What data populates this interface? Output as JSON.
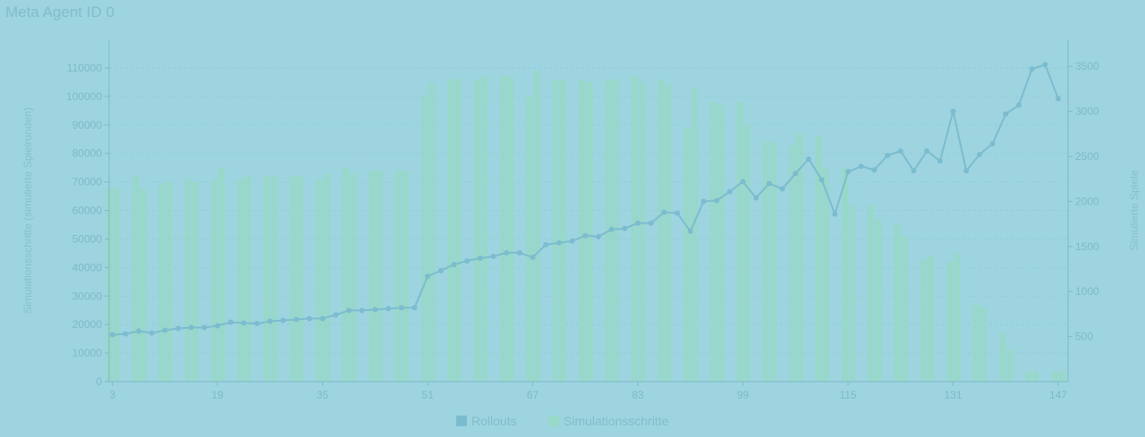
{
  "chart_data": {
    "type": "bar",
    "title": "Meta Agent ID 0",
    "x": [
      3,
      5,
      7,
      9,
      11,
      13,
      15,
      17,
      19,
      21,
      23,
      25,
      27,
      29,
      31,
      33,
      35,
      37,
      39,
      41,
      43,
      45,
      47,
      49,
      51,
      53,
      55,
      57,
      59,
      61,
      63,
      65,
      67,
      69,
      71,
      73,
      75,
      77,
      79,
      81,
      83,
      85,
      87,
      89,
      91,
      93,
      95,
      97,
      99,
      101,
      103,
      105,
      107,
      109,
      111,
      113,
      115,
      117,
      119,
      121,
      123,
      125,
      127,
      129,
      131,
      133,
      135,
      137,
      139,
      141,
      143,
      145,
      147
    ],
    "xticks": [
      3,
      19,
      35,
      51,
      67,
      83,
      99,
      115,
      131,
      147
    ],
    "ylabel_left": "Simulationsschritte (simulierte Spielrunden)",
    "ylabel_right": "Simulierte Spiele",
    "ylim_left": [
      0,
      120000
    ],
    "ylim_right": [
      0,
      3800
    ],
    "yticks_left": [
      0,
      10000,
      20000,
      30000,
      40000,
      50000,
      60000,
      70000,
      80000,
      90000,
      100000,
      110000
    ],
    "yticks_right": [
      500,
      1000,
      1500,
      2000,
      2500,
      3000,
      3500
    ],
    "legend": [
      "Rollouts",
      "Simulationsschritte"
    ],
    "legend_position": "bottom",
    "colors": {
      "background": "#9dd4e0",
      "bars": "#98d8c6",
      "line": "#7cbccf",
      "axis": "#80b9c8"
    },
    "series": [
      {
        "name": "Simulationsschritte",
        "type": "bar",
        "axis": "left",
        "values": [
          67500,
          72000,
          69000,
          71000,
          71000,
          74000,
          71000,
          72000,
          72000,
          72000,
          71000,
          75000,
          74000,
          74000,
          74000,
          74000,
          100000,
          106000,
          106000,
          106000,
          107000,
          107000,
          100000,
          107000,
          106000,
          106000,
          106000,
          106000,
          105000,
          106000,
          107000,
          106000,
          106000,
          106000,
          100000,
          101000,
          99000,
          98000,
          98000,
          96000,
          95000,
          94000,
          91000,
          89000,
          84000,
          84000,
          84000,
          84000,
          83000,
          85000,
          86000,
          86000,
          80000,
          75000,
          75000,
          62000,
          55000,
          52000,
          43000,
          42000,
          43000,
          43000,
          42000,
          42000,
          27000,
          27000,
          17000,
          11000,
          3500,
          3500,
          3500,
          3500,
          3500
        ],
        "pairs": [
          [
            67500,
            68000
          ],
          [
            72000,
            67500
          ],
          [
            69000,
            70000
          ],
          [
            71000,
            70000
          ],
          [
            71000,
            75000
          ],
          [
            71000,
            72000
          ],
          [
            72000,
            72000
          ],
          [
            72000,
            72000
          ],
          [
            71000,
            73000
          ],
          [
            75000,
            73000
          ],
          [
            74000,
            74000
          ],
          [
            74000,
            74000
          ],
          [
            100000,
            105000
          ],
          [
            106000,
            106000
          ],
          [
            106000,
            107000
          ],
          [
            107000,
            107000
          ],
          [
            100000,
            109000
          ],
          [
            106000,
            106000
          ],
          [
            106000,
            105000
          ],
          [
            106000,
            106000
          ],
          [
            107000,
            105000
          ],
          [
            106000,
            104000
          ],
          [
            89000,
            103000
          ],
          [
            98000,
            97000
          ],
          [
            98000,
            90000
          ],
          [
            84000,
            84000
          ],
          [
            83000,
            87000
          ],
          [
            86000,
            75000
          ],
          [
            75000,
            62000
          ],
          [
            62000,
            57000
          ],
          [
            55000,
            51000
          ],
          [
            43000,
            44000
          ],
          [
            42000,
            45000
          ],
          [
            27000,
            26000
          ],
          [
            17000,
            11000
          ],
          [
            3500,
            3500
          ],
          [
            3500,
            3500
          ]
        ]
      },
      {
        "name": "Rollouts",
        "type": "line",
        "axis": "right",
        "x": [
          3,
          5,
          7,
          9,
          11,
          13,
          15,
          17,
          19,
          21,
          23,
          25,
          27,
          29,
          31,
          33,
          35,
          37,
          39,
          41,
          43,
          45,
          47,
          49,
          51,
          53,
          55,
          57,
          59,
          61,
          63,
          65,
          67,
          69,
          71,
          73,
          75,
          77,
          79,
          81,
          83,
          85,
          87,
          89,
          91,
          93,
          95,
          97,
          99,
          101,
          103,
          105,
          107,
          109,
          111,
          113,
          115,
          117,
          119,
          121,
          123,
          125,
          127,
          129,
          131,
          133,
          135,
          137,
          139,
          141,
          143,
          145,
          147
        ],
        "values": [
          520,
          530,
          560,
          540,
          570,
          590,
          600,
          600,
          620,
          660,
          650,
          645,
          670,
          680,
          690,
          700,
          700,
          740,
          790,
          790,
          800,
          810,
          820,
          820,
          1170,
          1230,
          1300,
          1340,
          1370,
          1390,
          1430,
          1430,
          1380,
          1520,
          1540,
          1560,
          1620,
          1610,
          1690,
          1700,
          1760,
          1760,
          1880,
          1870,
          1670,
          2000,
          2010,
          2110,
          2220,
          2040,
          2200,
          2140,
          2310,
          2470,
          2240,
          1860,
          2330,
          2390,
          2350,
          2510,
          2560,
          2340,
          2560,
          2450,
          3000,
          2340,
          2520,
          2640,
          2970,
          3070,
          3470,
          3520,
          3140
        ]
      }
    ]
  }
}
